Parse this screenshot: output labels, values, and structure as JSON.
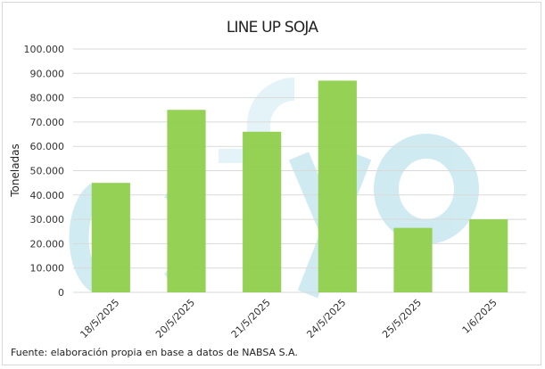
{
  "chart_data": {
    "type": "bar",
    "title": "LINE UP SOJA",
    "ylabel": "Toneladas",
    "xlabel": "",
    "categories": [
      "18/5/2025",
      "20/5/2025",
      "21/5/2025",
      "24/5/2025",
      "25/5/2025",
      "1/6/2025"
    ],
    "values": [
      45000,
      75000,
      66000,
      87000,
      26500,
      30000
    ],
    "ylim": [
      0,
      100000
    ],
    "yticks": [
      "0",
      "10.000",
      "20.000",
      "30.000",
      "40.000",
      "50.000",
      "60.000",
      "70.000",
      "80.000",
      "90.000",
      "100.000"
    ],
    "grid": true,
    "legend": "none",
    "bar_color": "#92d050",
    "grid_color": "#d9d9d9",
    "source": "Fuente: elaboración propia en base a datos de NABSA S.A.",
    "watermark": "fyo"
  }
}
